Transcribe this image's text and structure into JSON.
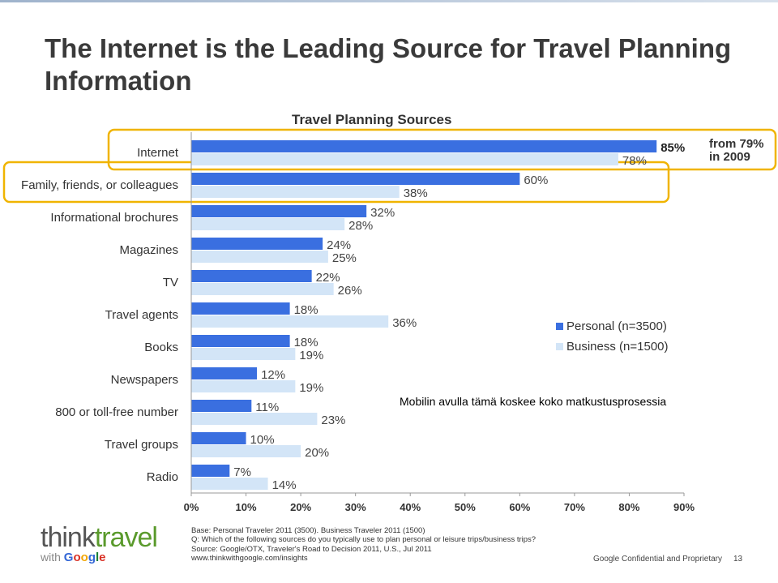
{
  "slide": {
    "title": "The Internet is the Leading Source for Travel Planning Information",
    "from_note": "from 79% in 2009",
    "overlay_text": "Mobilin avulla tämä koskee koko matkustusprosessia",
    "logo": {
      "think": "think",
      "travel": "travel",
      "with": "with",
      "google": [
        "G",
        "o",
        "o",
        "g",
        "l",
        "e"
      ]
    },
    "source_lines": [
      "Base:   Personal Traveler 2011 (3500). Business Traveler 2011 (1500)",
      "Q: Which of the following sources do you typically use to plan personal or leisure trips/business trips?",
      "Source: Google/OTX, Traveler's Road to Decision 2011, U.S., Jul 2011",
      "www.thinkwithgoogle.com/insights"
    ],
    "footer_text": "Google Confidential and Proprietary",
    "page_number": "13"
  },
  "chart_data": {
    "type": "bar",
    "orientation": "horizontal",
    "title": "Travel Planning Sources",
    "categories": [
      "Internet",
      "Family, friends, or colleagues",
      "Informational brochures",
      "Magazines",
      "TV",
      "Travel agents",
      "Books",
      "Newspapers",
      "800 or toll-free number",
      "Travel groups",
      "Radio"
    ],
    "series": [
      {
        "name": "Personal (n=3500)",
        "color": "#3a6fe0",
        "values": [
          85,
          60,
          32,
          24,
          22,
          18,
          18,
          12,
          11,
          10,
          7
        ],
        "labels": [
          "85%",
          "60%",
          "32%",
          "24%",
          "22%",
          "18%",
          "18%",
          "12%",
          "11%",
          "10%",
          "7%"
        ]
      },
      {
        "name": "Business (n=1500)",
        "color": "#d3e5f7",
        "values": [
          78,
          38,
          28,
          25,
          26,
          36,
          19,
          19,
          23,
          20,
          14
        ],
        "labels": [
          "78%",
          "38%",
          "28%",
          "25%",
          "26%",
          "36%",
          "19%",
          "19%",
          "23%",
          "20%",
          "14%"
        ]
      }
    ],
    "xlim": [
      0,
      90
    ],
    "xticks": [
      "0%",
      "10%",
      "20%",
      "30%",
      "40%",
      "50%",
      "60%",
      "70%",
      "80%",
      "90%"
    ],
    "highlighted_categories": [
      "Internet",
      "Family, friends, or colleagues"
    ],
    "highlight_color": "#f0b400",
    "legend_position": "right"
  }
}
